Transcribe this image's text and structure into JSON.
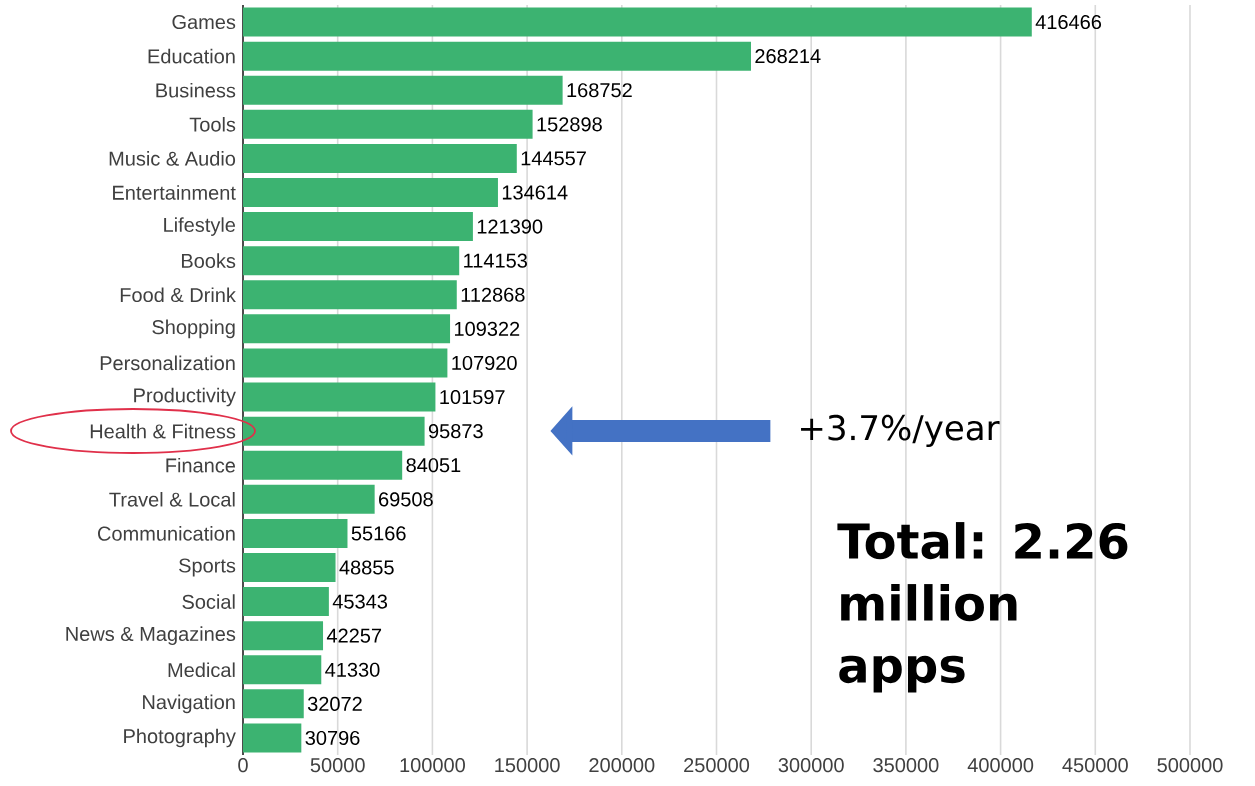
{
  "chart_data": {
    "type": "bar",
    "orientation": "horizontal",
    "categories": [
      "Games",
      "Education",
      "Business",
      "Tools",
      "Music & Audio",
      "Entertainment",
      "Lifestyle",
      "Books",
      "Food & Drink",
      "Shopping",
      "Personalization",
      "Productivity",
      "Health & Fitness",
      "Finance",
      "Travel & Local",
      "Communication",
      "Sports",
      "Social",
      "News & Magazines",
      "Medical",
      "Navigation",
      "Photography"
    ],
    "values": [
      416466,
      268214,
      168752,
      152898,
      144557,
      134614,
      121390,
      114153,
      112868,
      109322,
      107920,
      101597,
      95873,
      84051,
      69508,
      55166,
      48855,
      45343,
      42257,
      41330,
      32072,
      30796
    ],
    "color": "#3cb371",
    "xlim": [
      0,
      500000
    ],
    "xticks": [
      0,
      50000,
      100000,
      150000,
      200000,
      250000,
      300000,
      350000,
      400000,
      450000,
      500000
    ],
    "grid": "x",
    "data_labels": true,
    "annotations": [
      "+3.7%/year",
      "Total: 2.26 million apps"
    ]
  }
}
